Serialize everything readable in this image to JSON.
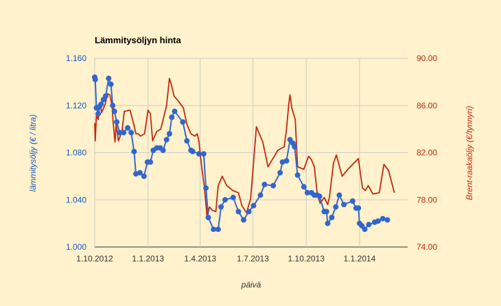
{
  "chart_data": {
    "type": "line",
    "title": "Lämmitysöljyn hinta",
    "xlabel": "päivä",
    "ylabel": "lämmitysöljy (€ / litra)",
    "y2label": "Brent-raakaöljy (€/tynnyri)",
    "xlim": [
      "2012-10-01",
      "2014-03-25"
    ],
    "x_ticks": [
      {
        "date": "2012-10-01",
        "label": "1.10.2012"
      },
      {
        "date": "2013-01-01",
        "label": "1.1.2013"
      },
      {
        "date": "2013-04-01",
        "label": "1.4.2013"
      },
      {
        "date": "2013-07-01",
        "label": "1.7.2013"
      },
      {
        "date": "2013-10-01",
        "label": "1.10.2013"
      },
      {
        "date": "2014-01-01",
        "label": "1.1.2014"
      }
    ],
    "ylim": [
      1.0,
      1.16
    ],
    "y_ticks": [
      "1.000",
      "1.040",
      "1.080",
      "1.120",
      "1.160"
    ],
    "y2lim": [
      74,
      90
    ],
    "y2_ticks": [
      "74.00",
      "78.00",
      "82.00",
      "86.00",
      "90.00"
    ],
    "grid": true,
    "colors": {
      "heating_oil": "#3366cc",
      "brent": "#c0280f"
    },
    "series": [
      {
        "name": "lämmitysöljy",
        "axis": "left",
        "markers": true,
        "points": [
          [
            "2012-10-01",
            1.144
          ],
          [
            "2012-10-02",
            1.142
          ],
          [
            "2012-10-04",
            1.118
          ],
          [
            "2012-10-07",
            1.113
          ],
          [
            "2012-10-09",
            1.119
          ],
          [
            "2012-10-12",
            1.121
          ],
          [
            "2012-10-16",
            1.125
          ],
          [
            "2012-10-20",
            1.128
          ],
          [
            "2012-10-25",
            1.143
          ],
          [
            "2012-10-29",
            1.138
          ],
          [
            "2012-11-01",
            1.12
          ],
          [
            "2012-11-04",
            1.115
          ],
          [
            "2012-11-08",
            1.106
          ],
          [
            "2012-11-13",
            1.097
          ],
          [
            "2012-11-20",
            1.097
          ],
          [
            "2012-11-27",
            1.101
          ],
          [
            "2012-12-03",
            1.097
          ],
          [
            "2012-12-08",
            1.081
          ],
          [
            "2012-12-11",
            1.062
          ],
          [
            "2012-12-18",
            1.063
          ],
          [
            "2012-12-25",
            1.06
          ],
          [
            "2012-12-31",
            1.072
          ],
          [
            "2013-01-05",
            1.072
          ],
          [
            "2013-01-10",
            1.082
          ],
          [
            "2013-01-16",
            1.084
          ],
          [
            "2013-01-22",
            1.084
          ],
          [
            "2013-01-27",
            1.082
          ],
          [
            "2013-02-02",
            1.091
          ],
          [
            "2013-02-07",
            1.096
          ],
          [
            "2013-02-11",
            1.11
          ],
          [
            "2013-02-16",
            1.115
          ],
          [
            "2013-03-02",
            1.106
          ],
          [
            "2013-03-09",
            1.09
          ],
          [
            "2013-03-16",
            1.082
          ],
          [
            "2013-03-19",
            1.081
          ],
          [
            "2013-03-30",
            1.079
          ],
          [
            "2013-04-07",
            1.079
          ],
          [
            "2013-04-11",
            1.05
          ],
          [
            "2013-04-15",
            1.025
          ],
          [
            "2013-04-24",
            1.015
          ],
          [
            "2013-05-02",
            1.015
          ],
          [
            "2013-05-07",
            1.034
          ],
          [
            "2013-05-14",
            1.04
          ],
          [
            "2013-05-28",
            1.042
          ],
          [
            "2013-06-06",
            1.03
          ],
          [
            "2013-06-15",
            1.023
          ],
          [
            "2013-06-24",
            1.03
          ],
          [
            "2013-07-02",
            1.035
          ],
          [
            "2013-07-14",
            1.044
          ],
          [
            "2013-07-21",
            1.053
          ],
          [
            "2013-08-05",
            1.052
          ],
          [
            "2013-08-17",
            1.063
          ],
          [
            "2013-08-21",
            1.072
          ],
          [
            "2013-08-28",
            1.073
          ],
          [
            "2013-09-03",
            1.091
          ],
          [
            "2013-09-08",
            1.088
          ],
          [
            "2013-09-11",
            1.085
          ],
          [
            "2013-09-16",
            1.061
          ],
          [
            "2013-09-27",
            1.051
          ],
          [
            "2013-10-03",
            1.046
          ],
          [
            "2013-10-10",
            1.046
          ],
          [
            "2013-10-15",
            1.044
          ],
          [
            "2013-10-20",
            1.044
          ],
          [
            "2013-10-24",
            1.043
          ],
          [
            "2013-11-01",
            1.03
          ],
          [
            "2013-11-05",
            1.03
          ],
          [
            "2013-11-07",
            1.02
          ],
          [
            "2013-11-14",
            1.025
          ],
          [
            "2013-11-21",
            1.034
          ],
          [
            "2013-11-27",
            1.044
          ],
          [
            "2013-12-05",
            1.036
          ],
          [
            "2013-12-20",
            1.039
          ],
          [
            "2013-12-26",
            1.033
          ],
          [
            "2013-12-30",
            1.033
          ],
          [
            "2014-01-01",
            1.02
          ],
          [
            "2014-01-05",
            1.018
          ],
          [
            "2014-01-10",
            1.015
          ],
          [
            "2014-01-17",
            1.019
          ],
          [
            "2014-01-27",
            1.021
          ],
          [
            "2014-02-02",
            1.022
          ],
          [
            "2014-02-10",
            1.024
          ],
          [
            "2014-02-18",
            1.023
          ]
        ]
      },
      {
        "name": "Brent-raakaöljy",
        "axis": "right",
        "markers": false,
        "points": [
          [
            "2012-10-01",
            84.5
          ],
          [
            "2012-10-02",
            83.0
          ],
          [
            "2012-10-04",
            85.2
          ],
          [
            "2012-10-07",
            84.8
          ],
          [
            "2012-10-10",
            86.2
          ],
          [
            "2012-10-13",
            85.4
          ],
          [
            "2012-10-19",
            86.1
          ],
          [
            "2012-10-23",
            87.0
          ],
          [
            "2012-10-27",
            86.9
          ],
          [
            "2012-10-31",
            86.0
          ],
          [
            "2012-11-02",
            84.5
          ],
          [
            "2012-11-05",
            82.9
          ],
          [
            "2012-11-07",
            84.4
          ],
          [
            "2012-11-11",
            83.0
          ],
          [
            "2012-11-17",
            83.8
          ],
          [
            "2012-11-21",
            85.5
          ],
          [
            "2012-12-01",
            85.6
          ],
          [
            "2012-12-08",
            84.3
          ],
          [
            "2012-12-11",
            83.6
          ],
          [
            "2012-12-15",
            83.6
          ],
          [
            "2012-12-19",
            83.4
          ],
          [
            "2012-12-26",
            83.6
          ],
          [
            "2013-01-01",
            85.6
          ],
          [
            "2013-01-05",
            85.3
          ],
          [
            "2013-01-09",
            83.0
          ],
          [
            "2013-01-16",
            83.8
          ],
          [
            "2013-01-23",
            84.0
          ],
          [
            "2013-02-02",
            86.0
          ],
          [
            "2013-02-07",
            88.3
          ],
          [
            "2013-02-10",
            87.8
          ],
          [
            "2013-02-15",
            86.8
          ],
          [
            "2013-02-22",
            86.4
          ],
          [
            "2013-03-03",
            85.8
          ],
          [
            "2013-03-09",
            84.4
          ],
          [
            "2013-03-16",
            83.6
          ],
          [
            "2013-03-23",
            83.4
          ],
          [
            "2013-03-27",
            83.6
          ],
          [
            "2013-03-30",
            82.9
          ],
          [
            "2013-04-04",
            80.6
          ],
          [
            "2013-04-08",
            79.2
          ],
          [
            "2013-04-13",
            76.5
          ],
          [
            "2013-04-17",
            77.4
          ],
          [
            "2013-04-22",
            77.1
          ],
          [
            "2013-04-28",
            77.0
          ],
          [
            "2013-05-02",
            79.2
          ],
          [
            "2013-05-09",
            80.0
          ],
          [
            "2013-05-17",
            79.2
          ],
          [
            "2013-05-27",
            78.8
          ],
          [
            "2013-06-06",
            78.6
          ],
          [
            "2013-06-12",
            77.5
          ],
          [
            "2013-06-20",
            76.9
          ],
          [
            "2013-06-27",
            78.1
          ],
          [
            "2013-07-07",
            84.2
          ],
          [
            "2013-07-18",
            82.9
          ],
          [
            "2013-07-27",
            80.8
          ],
          [
            "2013-08-13",
            82.2
          ],
          [
            "2013-08-24",
            82.5
          ],
          [
            "2013-08-28",
            84.0
          ],
          [
            "2013-09-01",
            86.2
          ],
          [
            "2013-09-03",
            86.9
          ],
          [
            "2013-09-06",
            85.8
          ],
          [
            "2013-09-12",
            84.8
          ],
          [
            "2013-09-16",
            80.8
          ],
          [
            "2013-09-27",
            80.6
          ],
          [
            "2013-10-05",
            81.7
          ],
          [
            "2013-10-10",
            81.4
          ],
          [
            "2013-10-15",
            80.8
          ],
          [
            "2013-10-20",
            78.5
          ],
          [
            "2013-10-25",
            77.7
          ],
          [
            "2013-11-01",
            78.2
          ],
          [
            "2013-11-07",
            77.6
          ],
          [
            "2013-11-10",
            78.2
          ],
          [
            "2013-11-17",
            81.1
          ],
          [
            "2013-11-22",
            81.8
          ],
          [
            "2013-12-02",
            80.0
          ],
          [
            "2013-12-12",
            80.6
          ],
          [
            "2013-12-30",
            81.5
          ],
          [
            "2014-01-06",
            79.0
          ],
          [
            "2014-01-11",
            78.8
          ],
          [
            "2014-01-16",
            79.2
          ],
          [
            "2014-01-24",
            78.5
          ],
          [
            "2014-02-04",
            78.6
          ],
          [
            "2014-02-12",
            81.0
          ],
          [
            "2014-02-20",
            80.5
          ],
          [
            "2014-03-02",
            78.6
          ]
        ]
      }
    ]
  }
}
